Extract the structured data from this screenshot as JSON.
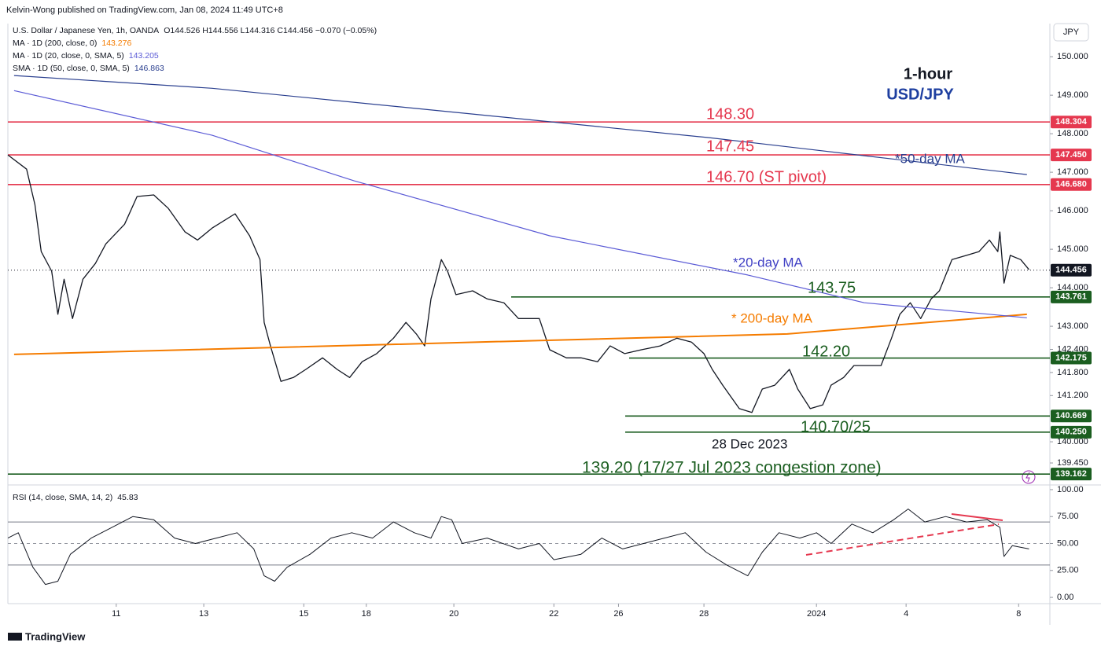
{
  "chart_data": {
    "type": "line",
    "attribution": "Kelvin-Wong published on TradingView.com, Jan 08, 2024 11:49 UTC+8",
    "title": "1-hour",
    "subtitle": "USD/JPY",
    "currency": "JPY",
    "logo": "TradingView",
    "xlim": [
      0,
      500
    ],
    "xticks": [
      {
        "value": 52,
        "label": "11"
      },
      {
        "value": 94,
        "label": "13"
      },
      {
        "value": 142,
        "label": "15"
      },
      {
        "value": 172,
        "label": "18"
      },
      {
        "value": 214,
        "label": "20"
      },
      {
        "value": 262,
        "label": "22"
      },
      {
        "value": 293,
        "label": "26"
      },
      {
        "value": 334,
        "label": "28"
      },
      {
        "value": 388,
        "label": "2024"
      },
      {
        "value": 431,
        "label": "4"
      },
      {
        "value": 485,
        "label": "8"
      }
    ],
    "ylim": [
      138.92,
      150.86
    ],
    "yticks": [
      {
        "value": 150,
        "label": "150.000"
      },
      {
        "value": 149,
        "label": "149.000"
      },
      {
        "value": 148,
        "label": "148.000"
      },
      {
        "value": 147,
        "label": "147.000"
      },
      {
        "value": 146,
        "label": "146.000"
      },
      {
        "value": 145,
        "label": "145.000"
      },
      {
        "value": 144,
        "label": "144.000"
      },
      {
        "value": 143,
        "label": "143.000"
      },
      {
        "value": 142.4,
        "label": "142.400"
      },
      {
        "value": 141.8,
        "label": "141.800"
      },
      {
        "value": 141.2,
        "label": "141.200"
      },
      {
        "value": 140,
        "label": "140.000"
      },
      {
        "value": 139.45,
        "label": "139.450"
      }
    ],
    "series": [
      {
        "name": "U.S. Dollar / Japanese Yen, 1h, OANDA",
        "color": "#131722",
        "last_label": "O144.526 H144.556 L144.316 C144.456 −0.070 (−0.05%)",
        "x": [
          0,
          9,
          13,
          16,
          21,
          24,
          27,
          31,
          36,
          42,
          47,
          56,
          62,
          70,
          77,
          85,
          91,
          98,
          109,
          116,
          121,
          123,
          126,
          131,
          137,
          143,
          151,
          158,
          164,
          170,
          177,
          185,
          191,
          196,
          200,
          203,
          208,
          211,
          215,
          223,
          230,
          238,
          245,
          255,
          260,
          268,
          275,
          283,
          289,
          296,
          304,
          313,
          321,
          328,
          334,
          338,
          343,
          351,
          357,
          362,
          368,
          375,
          379,
          385,
          391,
          395,
          401,
          406,
          413,
          419,
          424,
          428,
          433,
          438,
          443,
          447,
          453,
          460,
          466,
          471,
          475,
          476,
          478,
          481,
          486,
          490
        ],
        "values": [
          147.45,
          147.08,
          146.16,
          144.94,
          144.43,
          143.31,
          144.22,
          143.2,
          144.22,
          144.63,
          145.14,
          145.65,
          146.37,
          146.41,
          146.06,
          145.45,
          145.24,
          145.55,
          145.92,
          145.35,
          144.73,
          143.1,
          142.49,
          141.57,
          141.67,
          141.88,
          142.18,
          141.88,
          141.67,
          142.08,
          142.29,
          142.69,
          143.1,
          142.8,
          142.49,
          143.71,
          144.73,
          144.43,
          143.82,
          143.92,
          143.71,
          143.61,
          143.2,
          143.2,
          142.39,
          142.18,
          142.18,
          142.08,
          142.49,
          142.29,
          142.39,
          142.49,
          142.69,
          142.59,
          142.29,
          141.88,
          141.47,
          140.86,
          140.76,
          141.37,
          141.47,
          141.88,
          141.37,
          140.86,
          140.96,
          141.47,
          141.67,
          141.98,
          141.98,
          141.98,
          142.69,
          143.31,
          143.61,
          143.2,
          143.71,
          143.92,
          144.73,
          144.84,
          144.94,
          145.24,
          144.94,
          145.45,
          144.12,
          144.84,
          144.73,
          144.47
        ]
      },
      {
        "name": "MA · 1D (200, close, 0)",
        "color": "#f57c00",
        "last_label": "143.276",
        "x": [
          3,
          374,
          489
        ],
        "values": [
          142.27,
          142.8,
          143.31
        ]
      },
      {
        "name": "MA · 1D (20, close, 0, SMA, 5)",
        "color": "#5b5bd6",
        "last_label": "143.205",
        "x": [
          3,
          98,
          166,
          260,
          355,
          411,
          489
        ],
        "values": [
          149.12,
          147.96,
          146.78,
          145.35,
          144.33,
          143.61,
          143.22
        ]
      },
      {
        "name": "SMA · 1D (50, close, 0, SMA, 5)",
        "color": "#2a3f8f",
        "last_label": "146.863",
        "x": [
          3,
          98,
          223,
          336,
          411,
          489
        ],
        "values": [
          149.51,
          149.18,
          148.51,
          147.9,
          147.43,
          146.94
        ]
      }
    ],
    "levels": [
      {
        "value": 148.304,
        "label": "148.304",
        "color": "#e5384f"
      },
      {
        "value": 147.45,
        "label": "147.450",
        "color": "#e5384f"
      },
      {
        "value": 146.68,
        "label": "146.680",
        "color": "#e5384f"
      },
      {
        "value": 144.456,
        "label": "144.456",
        "color": "#131722"
      },
      {
        "value": 143.761,
        "label": "143.761",
        "color": "#1b5e20"
      },
      {
        "value": 142.175,
        "label": "142.175",
        "color": "#1b5e20"
      },
      {
        "value": 140.669,
        "label": "140.669",
        "color": "#1b5e20"
      },
      {
        "value": 140.25,
        "label": "140.250",
        "color": "#1b5e20"
      },
      {
        "value": 139.162,
        "label": "139.162",
        "color": "#1b5e20"
      }
    ],
    "annotations": [
      {
        "text": "148.30",
        "color": "#e5384f"
      },
      {
        "text": "147.45",
        "color": "#e5384f"
      },
      {
        "text": "146.70 (ST pivot)",
        "color": "#e5384f"
      },
      {
        "text": "*50-day MA",
        "color": "#2a3f8f"
      },
      {
        "text": "*20-day MA",
        "color": "#3f3fc4"
      },
      {
        "text": "143.75",
        "color": "#1b5e20"
      },
      {
        "text": "* 200-day MA",
        "color": "#f57c00"
      },
      {
        "text": "142.20",
        "color": "#1b5e20"
      },
      {
        "text": "140.70/25",
        "color": "#1b5e20"
      },
      {
        "text": "28 Dec 2023",
        "color": "#131722"
      },
      {
        "text": "139.20 (17/27 Jul 2023 congestion zone)",
        "color": "#1b5e20"
      }
    ],
    "rsi": {
      "name": "RSI (14, close, SMA, 14, 2)",
      "last_label": "45.83",
      "color": "#131722",
      "ylim": [
        -5.8,
        100.7
      ],
      "yticks": [
        {
          "value": 100,
          "label": "100.00"
        },
        {
          "value": 75,
          "label": "75.00"
        },
        {
          "value": 50,
          "label": "50.00"
        },
        {
          "value": 25,
          "label": "25.00"
        },
        {
          "value": 0,
          "label": "0.00"
        }
      ],
      "bands": [
        70,
        30
      ],
      "x": [
        0,
        5,
        12,
        18,
        24,
        30,
        40,
        50,
        60,
        70,
        80,
        90,
        100,
        110,
        118,
        123,
        128,
        134,
        145,
        155,
        165,
        175,
        185,
        195,
        203,
        208,
        213,
        218,
        230,
        245,
        255,
        262,
        275,
        285,
        295,
        305,
        315,
        325,
        335,
        345,
        355,
        362,
        370,
        380,
        388,
        395,
        405,
        415,
        425,
        432,
        440,
        450,
        460,
        470,
        476,
        478,
        482,
        490
      ],
      "values": [
        55,
        60,
        28,
        12,
        15,
        40,
        55,
        65,
        75,
        72,
        55,
        50,
        55,
        60,
        45,
        20,
        15,
        28,
        40,
        55,
        60,
        55,
        70,
        60,
        55,
        75,
        72,
        50,
        55,
        45,
        50,
        35,
        40,
        55,
        45,
        50,
        55,
        60,
        42,
        30,
        20,
        42,
        60,
        55,
        60,
        50,
        68,
        60,
        72,
        82,
        70,
        75,
        70,
        72,
        65,
        38,
        48,
        45
      ]
    }
  }
}
